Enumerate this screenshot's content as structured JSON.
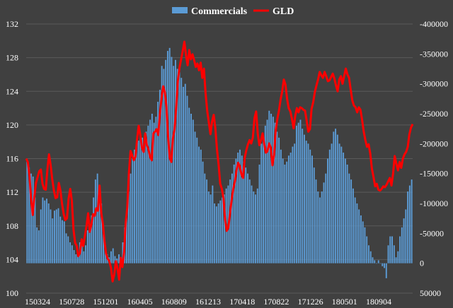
{
  "chart_data": {
    "type": "bar",
    "title": "",
    "legend": {
      "placement": "top-center"
    },
    "grid": true,
    "colors": {
      "background": "#404040",
      "grid": "#5a5a5a",
      "bars": "#5b9bd5",
      "line": "#ff0000",
      "text": "#ffffff"
    },
    "x_tick_labels": [
      "150324",
      "150728",
      "151201",
      "160405",
      "160809",
      "161213",
      "170418",
      "170822",
      "171226",
      "180501",
      "180904"
    ],
    "left_axis": {
      "ylim": [
        100,
        132
      ],
      "ticks": [
        100,
        104,
        108,
        112,
        116,
        120,
        124,
        128,
        132
      ]
    },
    "right_axis": {
      "reversed": true,
      "ylim": [
        50000,
        -400000
      ],
      "ticks": [
        50000,
        0,
        -50000,
        -100000,
        -150000,
        -200000,
        -250000,
        -300000,
        -350000,
        -400000
      ],
      "tick_labels": [
        "50000",
        "0",
        "-50000",
        "-100000",
        "-150000",
        "-200000",
        "-250000",
        "-300000",
        "-350000",
        "-400000"
      ]
    },
    "series": [
      {
        "name": "Commercials",
        "kind": "bar",
        "axis": "right",
        "values": [
          -170000,
          -160000,
          -150000,
          -145000,
          -110000,
          -60000,
          -55000,
          -90000,
          -110000,
          -105000,
          -108000,
          -100000,
          -90000,
          -75000,
          -88000,
          -90000,
          -92000,
          -78000,
          -72000,
          -70000,
          -50000,
          -45000,
          -35000,
          -30000,
          -22000,
          -15000,
          -20000,
          -35000,
          -40000,
          -20000,
          -30000,
          -55000,
          -60000,
          -80000,
          -110000,
          -140000,
          -150000,
          -130000,
          -100000,
          -55000,
          -30000,
          -15000,
          -10000,
          -20000,
          -25000,
          -12000,
          -8000,
          -15000,
          -10000,
          -35000,
          -60000,
          -90000,
          -120000,
          -150000,
          -175000,
          -190000,
          -200000,
          -205000,
          -215000,
          -210000,
          -200000,
          -220000,
          -230000,
          -240000,
          -250000,
          -235000,
          -245000,
          -270000,
          -290000,
          -330000,
          -325000,
          -340000,
          -355000,
          -360000,
          -345000,
          -330000,
          -340000,
          -325000,
          -320000,
          -310000,
          -295000,
          -300000,
          -280000,
          -260000,
          -250000,
          -240000,
          -220000,
          -210000,
          -195000,
          -190000,
          -170000,
          -150000,
          -140000,
          -120000,
          -115000,
          -130000,
          -100000,
          -95000,
          -100000,
          -105000,
          -110000,
          -115000,
          -125000,
          -130000,
          -140000,
          -150000,
          -165000,
          -175000,
          -185000,
          -190000,
          -180000,
          -170000,
          -160000,
          -150000,
          -140000,
          -130000,
          -120000,
          -115000,
          -125000,
          -165000,
          -200000,
          -210000,
          -230000,
          -240000,
          -255000,
          -250000,
          -245000,
          -235000,
          -220000,
          -210000,
          -190000,
          -175000,
          -165000,
          -170000,
          -180000,
          -185000,
          -195000,
          -200000,
          -230000,
          -235000,
          -240000,
          -225000,
          -215000,
          -205000,
          -200000,
          -190000,
          -180000,
          -160000,
          -140000,
          -120000,
          -110000,
          -120000,
          -135000,
          -150000,
          -175000,
          -190000,
          -200000,
          -220000,
          -225000,
          -215000,
          -200000,
          -195000,
          -185000,
          -175000,
          -165000,
          -150000,
          -140000,
          -125000,
          -110000,
          -100000,
          -90000,
          -80000,
          -70000,
          -60000,
          -45000,
          -30000,
          -20000,
          -10000,
          -5000,
          0,
          -5000,
          0,
          5000,
          8000,
          25000,
          -30000,
          -45000,
          -45000,
          -30000,
          -10000,
          -20000,
          -45000,
          -60000,
          -75000,
          -90000,
          -120000,
          -130000,
          -140000
        ]
      },
      {
        "name": "GLD",
        "kind": "line",
        "axis": "left",
        "values": [
          116.0,
          115.6,
          114.0,
          111.2,
          109.3,
          111.5,
          113.1,
          113.8,
          114.5,
          114.7,
          113.0,
          112.4,
          112.3,
          114.7,
          116.5,
          115.2,
          113.5,
          112.2,
          111.3,
          111.4,
          113.1,
          112.2,
          110.6,
          109.4,
          108.7,
          108.9,
          111.2,
          112.4,
          111.0,
          107.6,
          106.0,
          105.6,
          104.4,
          104.8,
          106.4,
          105.6,
          106.8,
          108.0,
          109.5,
          107.3,
          108.2,
          109.4,
          109.2,
          110.1,
          109.8,
          112.8,
          109.6,
          108.3,
          106.2,
          104.7,
          104.1,
          103.8,
          103.0,
          101.4,
          102.2,
          103.8,
          102.9,
          101.6,
          104.2,
          103.1,
          104.8,
          108.3,
          110.2,
          114.3,
          116.9,
          116.4,
          115.8,
          116.2,
          118.3,
          119.9,
          118.8,
          117.3,
          116.8,
          119.0,
          117.6,
          117.1,
          116.2,
          115.8,
          119.0,
          119.2,
          119.5,
          118.8,
          121.3,
          123.2,
          124.6,
          123.9,
          122.2,
          118.7,
          116.1,
          115.6,
          118.4,
          119.5,
          122.1,
          125.2,
          126.8,
          127.8,
          128.8,
          129.9,
          128.3,
          127.1,
          128.9,
          127.8,
          128.4,
          127.7,
          126.9,
          127.3,
          126.5,
          127.4,
          125.6,
          126.7,
          123.8,
          121.7,
          120.3,
          118.9,
          120.4,
          121.2,
          119.6,
          117.1,
          115.3,
          113.0,
          112.4,
          111.3,
          108.7,
          107.4,
          107.8,
          109.5,
          111.1,
          112.4,
          113.3,
          114.6,
          115.5,
          115.1,
          114.1,
          113.7,
          116.1,
          117.0,
          117.7,
          118.2,
          117.8,
          118.5,
          120.8,
          121.6,
          119.0,
          117.6,
          118.2,
          119.0,
          117.7,
          116.7,
          116.9,
          117.8,
          117.3,
          115.2,
          116.4,
          119.3,
          120.7,
          121.7,
          123.0,
          124.0,
          125.4,
          124.8,
          123.1,
          122.0,
          121.6,
          120.7,
          119.6,
          121.1,
          122.0,
          121.5,
          122.1,
          122.0,
          121.8,
          121.7,
          120.5,
          119.2,
          119.5,
          121.9,
          122.7,
          123.9,
          124.7,
          125.4,
          126.3,
          125.9,
          125.6,
          126.3,
          125.8,
          125.2,
          125.3,
          125.7,
          126.1,
          125.5,
          124.7,
          124.0,
          125.4,
          125.8,
          124.9,
          125.8,
          126.7,
          126.0,
          125.6,
          124.2,
          122.9,
          122.3,
          122.1,
          121.5,
          122.1,
          121.8,
          120.6,
          119.2,
          118.2,
          117.4,
          117.7,
          116.6,
          114.8,
          113.8,
          112.7,
          113.0,
          112.3,
          112.2,
          112.4,
          112.7,
          112.6,
          112.9,
          113.3,
          113.7,
          112.8,
          114.2,
          116.3,
          115.4,
          114.6,
          115.6,
          114.9,
          116.0,
          116.5,
          116.8,
          117.4,
          118.9,
          119.7,
          120.1
        ]
      }
    ]
  }
}
